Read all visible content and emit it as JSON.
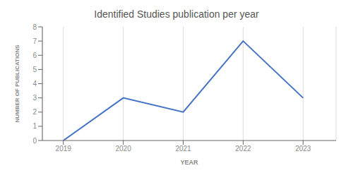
{
  "chart_data": {
    "type": "line",
    "title": "Identified Studies publication per year",
    "xlabel": "YEAR",
    "ylabel": "NUMBER OF PUBLICATIONS",
    "x": [
      2019,
      2020,
      2021,
      2022,
      2023
    ],
    "values": [
      0,
      3,
      2,
      7,
      3
    ],
    "color": "#4472C4",
    "xlim": [
      2018.65,
      2023.55
    ],
    "xticks": [
      2019,
      2020,
      2021,
      2022,
      2023
    ],
    "ylim": [
      0,
      8
    ],
    "yticks": [
      0,
      1,
      2,
      3,
      4,
      5,
      6,
      7,
      8
    ],
    "grid": "x"
  }
}
